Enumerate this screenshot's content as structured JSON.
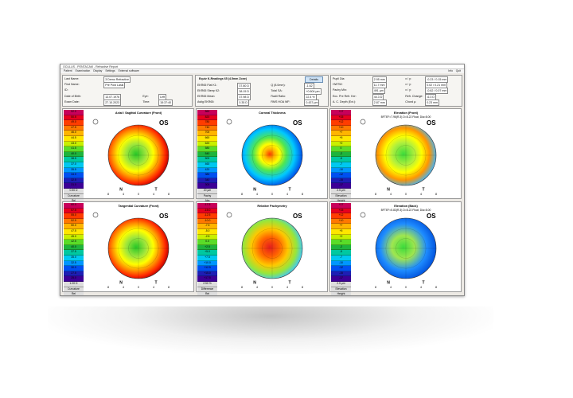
{
  "window": {
    "title": "OCULUS - PENTACAM - Refractive Report",
    "menu": [
      "Patient",
      "Examination",
      "Display",
      "Settings",
      "External software"
    ],
    "right": [
      "Info",
      "Quit"
    ]
  },
  "patient": {
    "rows": [
      [
        "Last Name:",
        "3 Demo Refractive"
      ],
      [
        "First Name:",
        "Pre Post Lasik"
      ],
      [
        "ID:"
      ],
      [
        "Date of Birth:",
        "13.07.1976",
        "Eye:",
        "Left"
      ],
      [
        "Exam Date:",
        "27.10.2023",
        "Time:",
        "15:37:40"
      ]
    ]
  },
  "kreadings": {
    "title": "Equiv K-Readings 65 (4.5mm Zone)",
    "button": "Details",
    "rows": [
      [
        "EKR65 Flat K1:",
        "37.80 D",
        "Q (8.0mm):",
        "-1.62"
      ],
      [
        "EKR65 Steep K2:",
        "38.15 D",
        "Total SA:",
        "+0.604 µm"
      ],
      [
        "EKR65 Mean:",
        "37.98 D",
        "Radii Ratio:",
        "22.4 %"
      ],
      [
        "Astig EKR65:",
        "0.35 D",
        "RMS HOA WF:",
        "0.437 µm"
      ]
    ]
  },
  "pupil": {
    "rows": [
      [
        "Pupil Dia:",
        "2.95 mm",
        "x / y:",
        "-0.23 / 0.15 mm"
      ],
      [
        "HWTW:",
        "11.7 mm",
        "x / y:",
        "0.02 / 0.21 mm"
      ],
      [
        "Pachy Min:",
        "491 µm",
        "x / y:",
        "-0.62 / 0.07 mm"
      ],
      [
        "Ecc. Pre Refr. Ker:",
        "44.3 D",
        "Refr. Change:",
        "-6.3 D"
      ],
      [
        "A. C. Depth (Ext.):",
        "2.87 mm",
        "Chord µ:",
        "0.23 mm"
      ]
    ]
  },
  "panels": [
    {
      "title": "Axial / Sagittal Curvature (Front)",
      "eye": "OS",
      "scale": [
        "52.0",
        "50.5",
        "49.0",
        "47.5",
        "46.0",
        "44.5",
        "43.0",
        "41.5",
        "40.0",
        "38.5",
        "37.0",
        "35.5",
        "34.0",
        "32.5",
        "31.0"
      ],
      "footer": [
        "0.50 D",
        "Curvature",
        "Rel"
      ],
      "ticks": [
        "8",
        "4",
        "0",
        "4",
        "8"
      ],
      "n": "N",
      "t": "T",
      "kind": "axial"
    },
    {
      "title": "Corneal Thickness",
      "eye": "OS",
      "scale": [
        "860",
        "820",
        "780",
        "740",
        "700",
        "660",
        "620",
        "580",
        "540",
        "500",
        "460",
        "420",
        "380",
        "340",
        "300"
      ],
      "footer": [
        "20 µm",
        "Pachy",
        "Abs"
      ],
      "ticks": [
        "8",
        "4",
        "0",
        "4",
        "8"
      ],
      "n": "N",
      "t": "T",
      "kind": "thick"
    },
    {
      "title": "Elevation (Front)",
      "subtitle": "BFTEF=7.96(R.3) D=8.22 Float, Dia=8.00",
      "eye": "OS",
      "scale": [
        "+17",
        "+15",
        "+12",
        "+10",
        "+7",
        "+5",
        "+2",
        "0",
        "-2",
        "-5",
        "-7",
        "-10",
        "-12",
        "-15",
        "-17"
      ],
      "footer": [
        "2.5 µm",
        "Elevation",
        "Height"
      ],
      "ticks": [
        "8",
        "4",
        "0",
        "4",
        "8"
      ],
      "n": "N",
      "t": "T",
      "kind": "elev"
    },
    {
      "title": "Tangential Curvature (Front)",
      "eye": "OS",
      "scale": [
        "60.0",
        "57.5",
        "55.0",
        "52.5",
        "50.0",
        "47.5",
        "45.0",
        "42.5",
        "40.0",
        "37.5",
        "35.0",
        "32.5",
        "30.0",
        "27.5",
        "25.0"
      ],
      "footer": [
        "1.00 D",
        "Curvature",
        "Rel"
      ],
      "ticks": [
        "8",
        "4",
        "0",
        "4",
        "8"
      ],
      "n": "N",
      "t": "T",
      "kind": "axial"
    },
    {
      "title": "Relative Pachymetry",
      "eye": "OS",
      "scale": [
        "-17.5",
        "-15.0",
        "-12.5",
        "-10.0",
        "-7.5",
        "-5.0",
        "-2.5",
        "0.0",
        "+2.5",
        "+5.0",
        "+7.5",
        "+10.0",
        "+12.5",
        "+15.0",
        "+17.5"
      ],
      "footer": [
        "2.50 %",
        "Difference",
        "Rel"
      ],
      "ticks": [
        "8",
        "4",
        "0",
        "4",
        "8"
      ],
      "n": "N",
      "t": "T",
      "kind": "pachy"
    },
    {
      "title": "Elevation (Back)",
      "subtitle": "BFTEF=5.83(R.3) D=8.22 Float, Dia=8.00",
      "eye": "OS",
      "scale": [
        "+17",
        "+15",
        "+12",
        "+10",
        "+7",
        "+5",
        "+2",
        "0",
        "-2",
        "-5",
        "-7",
        "-10",
        "-12",
        "-15",
        "-17"
      ],
      "footer": [
        "2.5 µm",
        "Elevation",
        "Height"
      ],
      "ticks": [
        "8",
        "4",
        "0",
        "4",
        "8"
      ],
      "n": "N",
      "t": "T",
      "kind": "back"
    }
  ]
}
